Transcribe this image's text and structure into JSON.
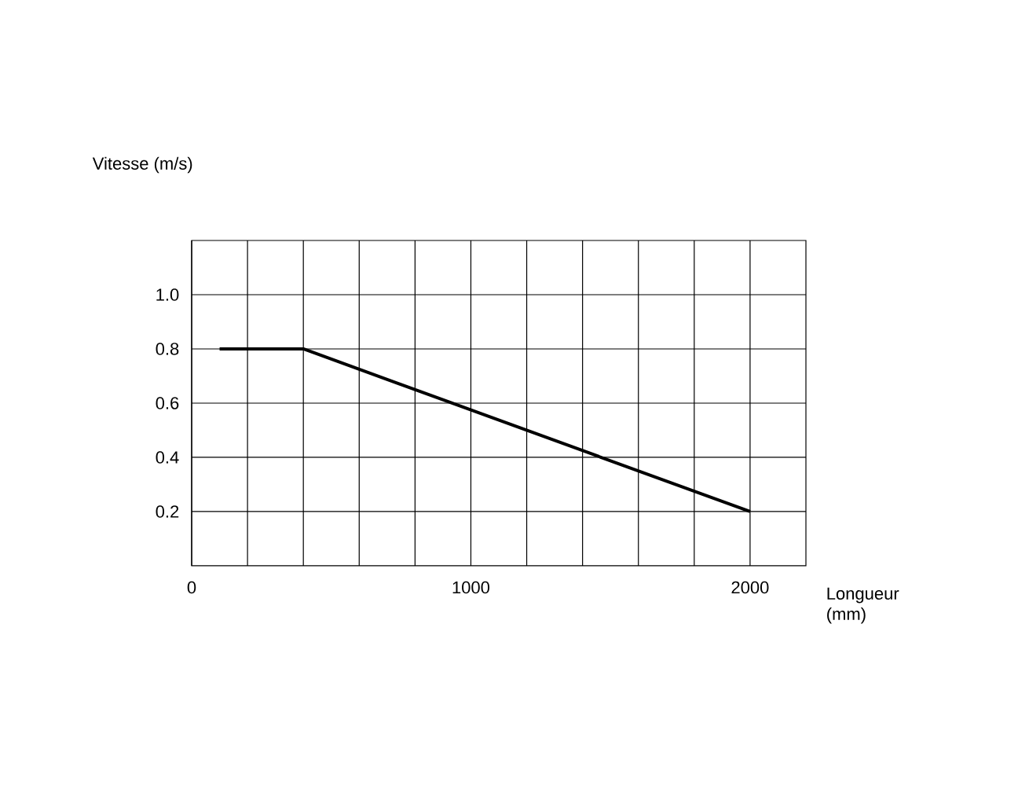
{
  "chart_data": {
    "type": "line",
    "xlabel": "Longueur (mm)",
    "ylabel": "Vitesse (m/s)",
    "x": [
      100,
      400,
      2000
    ],
    "series": [
      {
        "color": "#000000",
        "values": [
          0.8,
          0.8,
          0.2
        ]
      }
    ],
    "xlim": [
      0,
      2200
    ],
    "xticks": [
      0,
      {
        "value": 200,
        "label": null
      },
      {
        "value": 400,
        "label": null
      },
      {
        "value": 600,
        "label": null
      },
      {
        "value": 800,
        "label": null
      },
      1000,
      {
        "value": 1200,
        "label": null
      },
      {
        "value": 1400,
        "label": null
      },
      {
        "value": 1600,
        "label": null
      },
      {
        "value": 1800,
        "label": null
      },
      2000
    ],
    "ylim": [
      0,
      1.2
    ],
    "yticks": [
      {
        "value": 0.2,
        "label": "0.2"
      },
      {
        "value": 0.4,
        "label": "0.4"
      },
      {
        "value": 0.6,
        "label": "0.6"
      },
      {
        "value": 0.8,
        "label": "0.8"
      },
      {
        "value": 1,
        "label": "1.0"
      }
    ],
    "grid": true,
    "marker": "none",
    "line_style": "solid"
  }
}
